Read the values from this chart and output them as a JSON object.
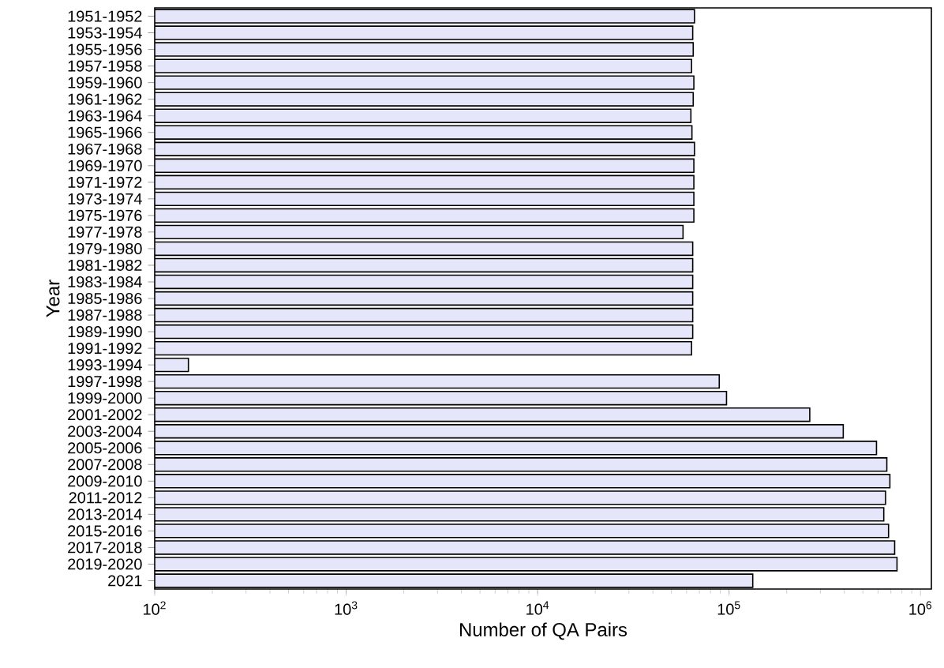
{
  "chart_data": {
    "type": "bar",
    "orientation": "horizontal",
    "log": "x",
    "xlabel": "Number of QA Pairs",
    "ylabel": "Year",
    "color": "#e6e6fa",
    "categories": [
      "1951-1952",
      "1953-1954",
      "1955-1956",
      "1957-1958",
      "1959-1960",
      "1961-1962",
      "1963-1964",
      "1965-1966",
      "1967-1968",
      "1969-1970",
      "1971-1972",
      "1973-1974",
      "1975-1976",
      "1977-1978",
      "1979-1980",
      "1981-1982",
      "1983-1984",
      "1985-1986",
      "1987-1988",
      "1989-1990",
      "1991-1992",
      "1993-1994",
      "1997-1998",
      "1999-2000",
      "2001-2002",
      "2003-2004",
      "2005-2006",
      "2007-2008",
      "2009-2010",
      "2011-2012",
      "2013-2014",
      "2015-2016",
      "2017-2018",
      "2019-2020",
      "2021"
    ],
    "values": [
      66000,
      64600,
      65000,
      63700,
      65500,
      65000,
      63200,
      64000,
      66000,
      65500,
      65500,
      65500,
      65500,
      57500,
      64600,
      64600,
      64600,
      64600,
      64600,
      64600,
      63700,
      150,
      88900,
      97000,
      264000,
      395000,
      589000,
      667000,
      692000,
      657000,
      643000,
      681000,
      733000,
      754000,
      133000
    ],
    "xlim": [
      100,
      1140000
    ],
    "xticks": [
      {
        "value": 100,
        "label": "10$^{2}$"
      },
      {
        "value": 1000,
        "label": "10$^{3}$"
      },
      {
        "value": 10000,
        "label": "10$^{4}$"
      },
      {
        "value": 100000,
        "label": "10$^{5}$"
      },
      {
        "value": 1000000,
        "label": "10$^{6}$"
      }
    ]
  }
}
